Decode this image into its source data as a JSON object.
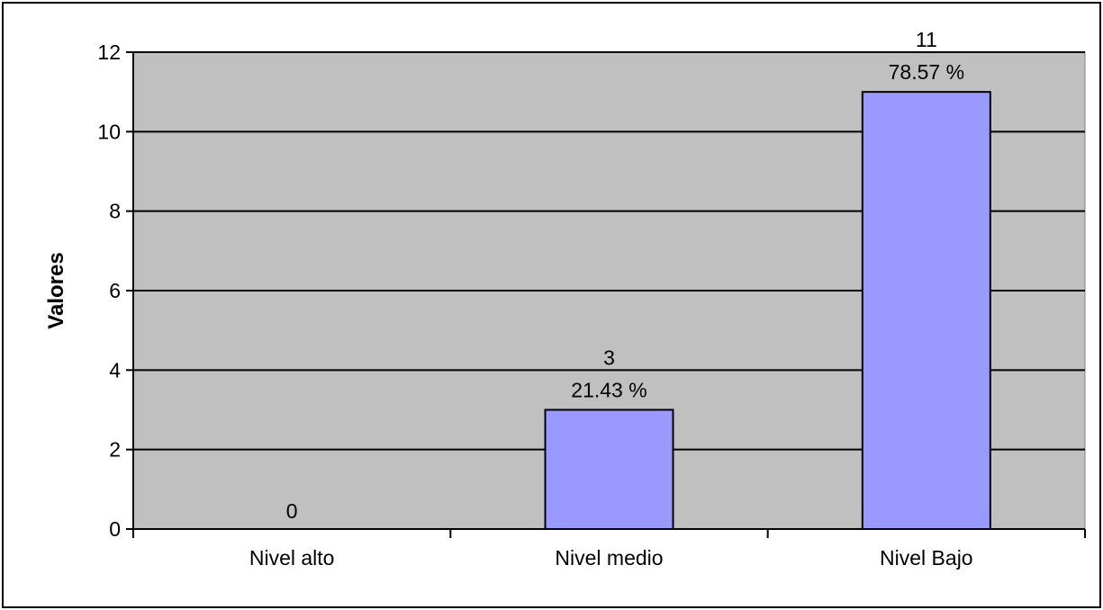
{
  "chart_data": {
    "type": "bar",
    "categories": [
      "Nivel alto",
      "Nivel medio",
      "Nivel Bajo"
    ],
    "values": [
      0,
      3,
      11
    ],
    "data_labels": [
      {
        "value": "0",
        "percent": ""
      },
      {
        "value": "3",
        "percent": "21.43 %"
      },
      {
        "value": "11",
        "percent": "78.57 %"
      }
    ],
    "title": "",
    "xlabel": "",
    "ylabel": "Valores",
    "ylim": [
      0,
      12
    ],
    "yticks": [
      "0",
      "2",
      "4",
      "6",
      "8",
      "10",
      "12"
    ],
    "grid": true,
    "legend": "none",
    "colors": {
      "plot_background": "#C0C0C0",
      "bar_fill": "#9999FF",
      "bar_stroke": "#000000",
      "gridline": "#000000"
    }
  }
}
